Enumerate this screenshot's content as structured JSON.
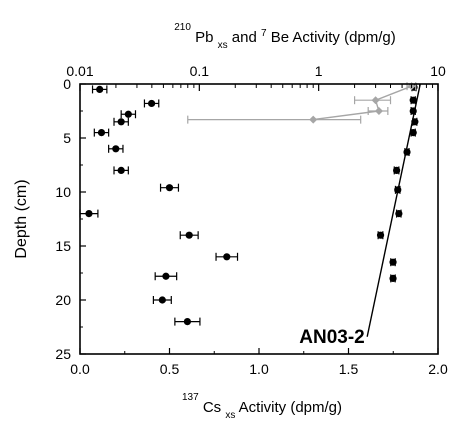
{
  "chart_data": {
    "type": "scatter",
    "top_axis": {
      "label_sup1": "210",
      "label_main1": "Pb",
      "label_sub1": "xs",
      "label_mid": " and ",
      "label_sup2": "7",
      "label_main2": "Be Activity (dpm/g)",
      "scale": "log",
      "range": [
        0.01,
        10
      ],
      "ticks": [
        0.01,
        0.1,
        1,
        10
      ],
      "tick_labels": [
        "0.01",
        "0.1",
        "1",
        "10"
      ]
    },
    "bottom_axis": {
      "label_sup": "137",
      "label_main": "Cs",
      "label_sub": "xs",
      "label_rest": " Activity (dpm/g)",
      "range": [
        0.0,
        2.0
      ],
      "ticks": [
        0.0,
        0.5,
        1.0,
        1.5,
        2.0
      ],
      "tick_labels": [
        "0.0",
        "0.5",
        "1.0",
        "1.5",
        "2.0"
      ]
    },
    "y_axis": {
      "label": "Depth (cm)",
      "range": [
        0,
        25
      ],
      "inverted": true,
      "ticks": [
        0,
        5,
        10,
        15,
        20,
        25
      ],
      "tick_labels": [
        "0",
        "5",
        "10",
        "15",
        "20",
        "25"
      ]
    },
    "annotation": "AN03-2",
    "colors": {
      "cs": "#000000",
      "pb": "#000000",
      "be": "#a6a6a6",
      "fit": "#000000"
    },
    "series": [
      {
        "axis": "bottom",
        "marker": "circle",
        "color": "#000000",
        "points": [
          {
            "x": 0.11,
            "y": 0.5,
            "err": 0.04
          },
          {
            "x": 0.4,
            "y": 1.8,
            "err": 0.04
          },
          {
            "x": 0.27,
            "y": 2.8,
            "err": 0.04
          },
          {
            "x": 0.23,
            "y": 3.5,
            "err": 0.04
          },
          {
            "x": 0.12,
            "y": 4.5,
            "err": 0.04
          },
          {
            "x": 0.2,
            "y": 6.0,
            "err": 0.04
          },
          {
            "x": 0.23,
            "y": 8.0,
            "err": 0.04
          },
          {
            "x": 0.5,
            "y": 9.6,
            "err": 0.05
          },
          {
            "x": 0.05,
            "y": 12.0,
            "err": 0.05
          },
          {
            "x": 0.61,
            "y": 14.0,
            "err": 0.05
          },
          {
            "x": 0.82,
            "y": 16.0,
            "err": 0.06
          },
          {
            "x": 0.48,
            "y": 17.8,
            "err": 0.06
          },
          {
            "x": 0.46,
            "y": 20.0,
            "err": 0.05
          },
          {
            "x": 0.6,
            "y": 22.0,
            "err": 0.07
          }
        ]
      },
      {
        "axis": "top",
        "marker": "circle",
        "color": "#000000",
        "points": [
          {
            "x": 6.3,
            "y": 0.3,
            "err": 0.25
          },
          {
            "x": 6.2,
            "y": 1.5,
            "err": 0.25
          },
          {
            "x": 6.2,
            "y": 2.5,
            "err": 0.25
          },
          {
            "x": 6.4,
            "y": 3.5,
            "err": 0.25
          },
          {
            "x": 6.2,
            "y": 4.5,
            "err": 0.25
          },
          {
            "x": 5.5,
            "y": 6.3,
            "err": 0.22
          },
          {
            "x": 4.5,
            "y": 8.0,
            "err": 0.2
          },
          {
            "x": 4.6,
            "y": 9.8,
            "err": 0.2
          },
          {
            "x": 4.7,
            "y": 12.0,
            "err": 0.2
          },
          {
            "x": 3.3,
            "y": 14.0,
            "err": 0.15
          },
          {
            "x": 4.2,
            "y": 16.5,
            "err": 0.18
          },
          {
            "x": 4.2,
            "y": 18.0,
            "err": 0.18
          }
        ]
      },
      {
        "axis": "top",
        "marker": "diamond",
        "color": "#a6a6a6",
        "points": [
          {
            "x": 6.0,
            "y": 0.2,
            "err_lo": 0.5,
            "err_hi": 0.5
          },
          {
            "x": 3.0,
            "y": 1.5,
            "err_lo": 1.0,
            "err_hi": 1.0
          },
          {
            "x": 3.2,
            "y": 2.5,
            "err_lo": 0.6,
            "err_hi": 0.6
          },
          {
            "x": 0.9,
            "y": 3.3,
            "err_lo": 0.82,
            "err_hi": 1.35
          }
        ]
      }
    ],
    "be_line": [
      [
        6.0,
        0.2
      ],
      [
        3.0,
        1.5
      ],
      [
        3.2,
        2.5
      ],
      [
        0.9,
        3.3
      ]
    ],
    "fit_line": [
      [
        7.1,
        0.0
      ],
      [
        2.55,
        23.4
      ]
    ]
  }
}
